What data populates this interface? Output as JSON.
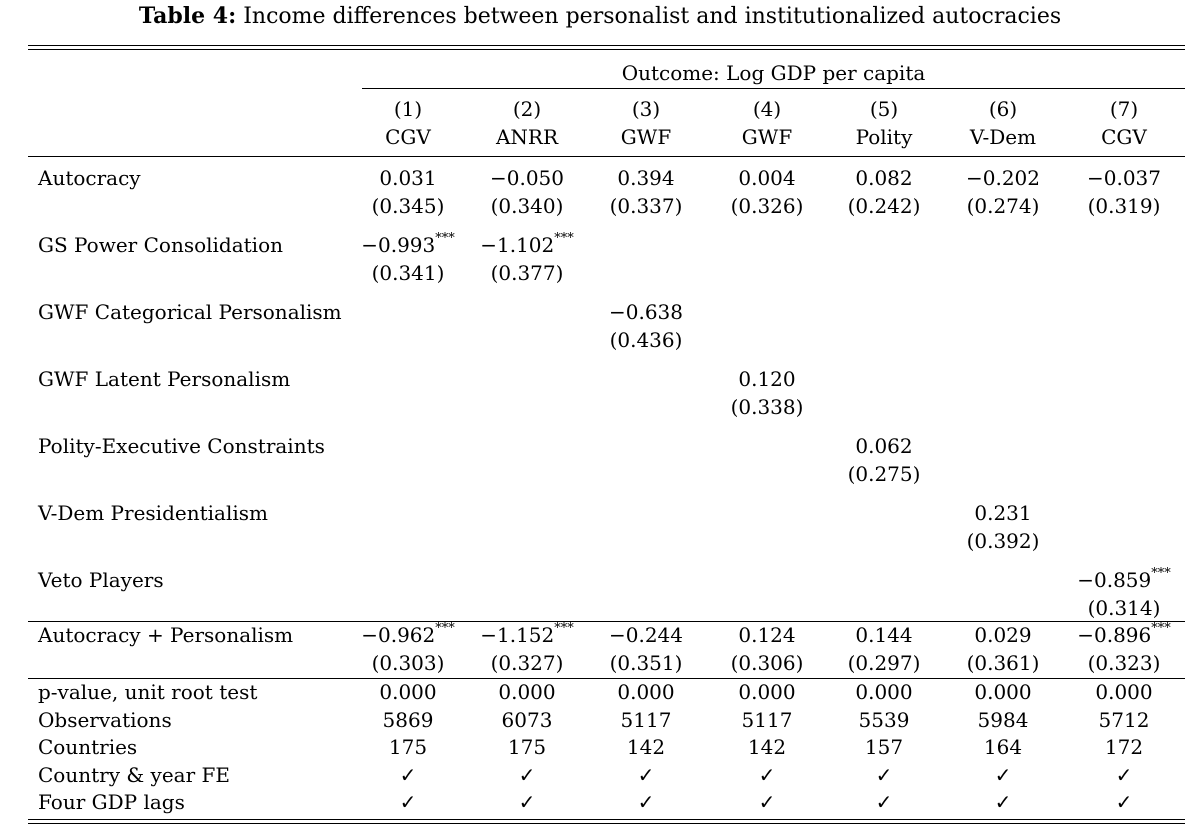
{
  "caption": {
    "label": "Table 4:",
    "text": "Income differences between personalist and institutionalized autocracies"
  },
  "outcome": "Outcome: Log GDP per capita",
  "columns": [
    {
      "num": "(1)",
      "name": "CGV"
    },
    {
      "num": "(2)",
      "name": "ANRR"
    },
    {
      "num": "(3)",
      "name": "GWF"
    },
    {
      "num": "(4)",
      "name": "GWF"
    },
    {
      "num": "(5)",
      "name": "Polity"
    },
    {
      "num": "(6)",
      "name": "V-Dem"
    },
    {
      "num": "(7)",
      "name": "CGV"
    }
  ],
  "coef_rows": [
    {
      "label": "Autocracy",
      "coefs": [
        "0.031",
        "−0.050",
        "0.394",
        "0.004",
        "0.082",
        "−0.202",
        "−0.037"
      ],
      "stars": [
        "",
        "",
        "",
        "",
        "",
        "",
        ""
      ],
      "ses": [
        "(0.345)",
        "(0.340)",
        "(0.337)",
        "(0.326)",
        "(0.242)",
        "(0.274)",
        "(0.319)"
      ]
    },
    {
      "label": "GS Power Consolidation",
      "coefs": [
        "−0.993",
        "−1.102",
        "",
        "",
        "",
        "",
        ""
      ],
      "stars": [
        "***",
        "***",
        "",
        "",
        "",
        "",
        ""
      ],
      "ses": [
        "(0.341)",
        "(0.377)",
        "",
        "",
        "",
        "",
        ""
      ]
    },
    {
      "label": "GWF Categorical Personalism",
      "coefs": [
        "",
        "",
        "−0.638",
        "",
        "",
        "",
        ""
      ],
      "stars": [
        "",
        "",
        "",
        "",
        "",
        "",
        ""
      ],
      "ses": [
        "",
        "",
        "(0.436)",
        "",
        "",
        "",
        ""
      ]
    },
    {
      "label": "GWF Latent Personalism",
      "coefs": [
        "",
        "",
        "",
        "0.120",
        "",
        "",
        ""
      ],
      "stars": [
        "",
        "",
        "",
        "",
        "",
        "",
        ""
      ],
      "ses": [
        "",
        "",
        "",
        "(0.338)",
        "",
        "",
        ""
      ]
    },
    {
      "label": "Polity-Executive Constraints",
      "coefs": [
        "",
        "",
        "",
        "",
        "0.062",
        "",
        ""
      ],
      "stars": [
        "",
        "",
        "",
        "",
        "",
        "",
        ""
      ],
      "ses": [
        "",
        "",
        "",
        "",
        "(0.275)",
        "",
        ""
      ]
    },
    {
      "label": "V-Dem Presidentialism",
      "coefs": [
        "",
        "",
        "",
        "",
        "",
        "0.231",
        ""
      ],
      "stars": [
        "",
        "",
        "",
        "",
        "",
        "",
        ""
      ],
      "ses": [
        "",
        "",
        "",
        "",
        "",
        "(0.392)",
        ""
      ]
    },
    {
      "label": "Veto Players",
      "coefs": [
        "",
        "",
        "",
        "",
        "",
        "",
        "−0.859"
      ],
      "stars": [
        "",
        "",
        "",
        "",
        "",
        "",
        "***"
      ],
      "ses": [
        "",
        "",
        "",
        "",
        "",
        "",
        "(0.314)"
      ]
    }
  ],
  "sum_row": {
    "label": "Autocracy + Personalism",
    "coefs": [
      "−0.962",
      "−1.152",
      "−0.244",
      "0.124",
      "0.144",
      "0.029",
      "−0.896"
    ],
    "stars": [
      "***",
      "***",
      "",
      "",
      "",
      "",
      "***"
    ],
    "ses": [
      "(0.303)",
      "(0.327)",
      "(0.351)",
      "(0.306)",
      "(0.297)",
      "(0.361)",
      "(0.323)"
    ]
  },
  "stat_rows": [
    {
      "label": "p-value, unit root test",
      "values": [
        "0.000",
        "0.000",
        "0.000",
        "0.000",
        "0.000",
        "0.000",
        "0.000"
      ]
    },
    {
      "label": "Observations",
      "values": [
        "5869",
        "6073",
        "5117",
        "5117",
        "5539",
        "5984",
        "5712"
      ]
    },
    {
      "label": "Countries",
      "values": [
        "175",
        "175",
        "142",
        "142",
        "157",
        "164",
        "172"
      ]
    },
    {
      "label": "Country & year FE",
      "values": [
        "✓",
        "✓",
        "✓",
        "✓",
        "✓",
        "✓",
        "✓"
      ]
    },
    {
      "label": "Four GDP lags",
      "values": [
        "✓",
        "✓",
        "✓",
        "✓",
        "✓",
        "✓",
        "✓"
      ]
    }
  ]
}
